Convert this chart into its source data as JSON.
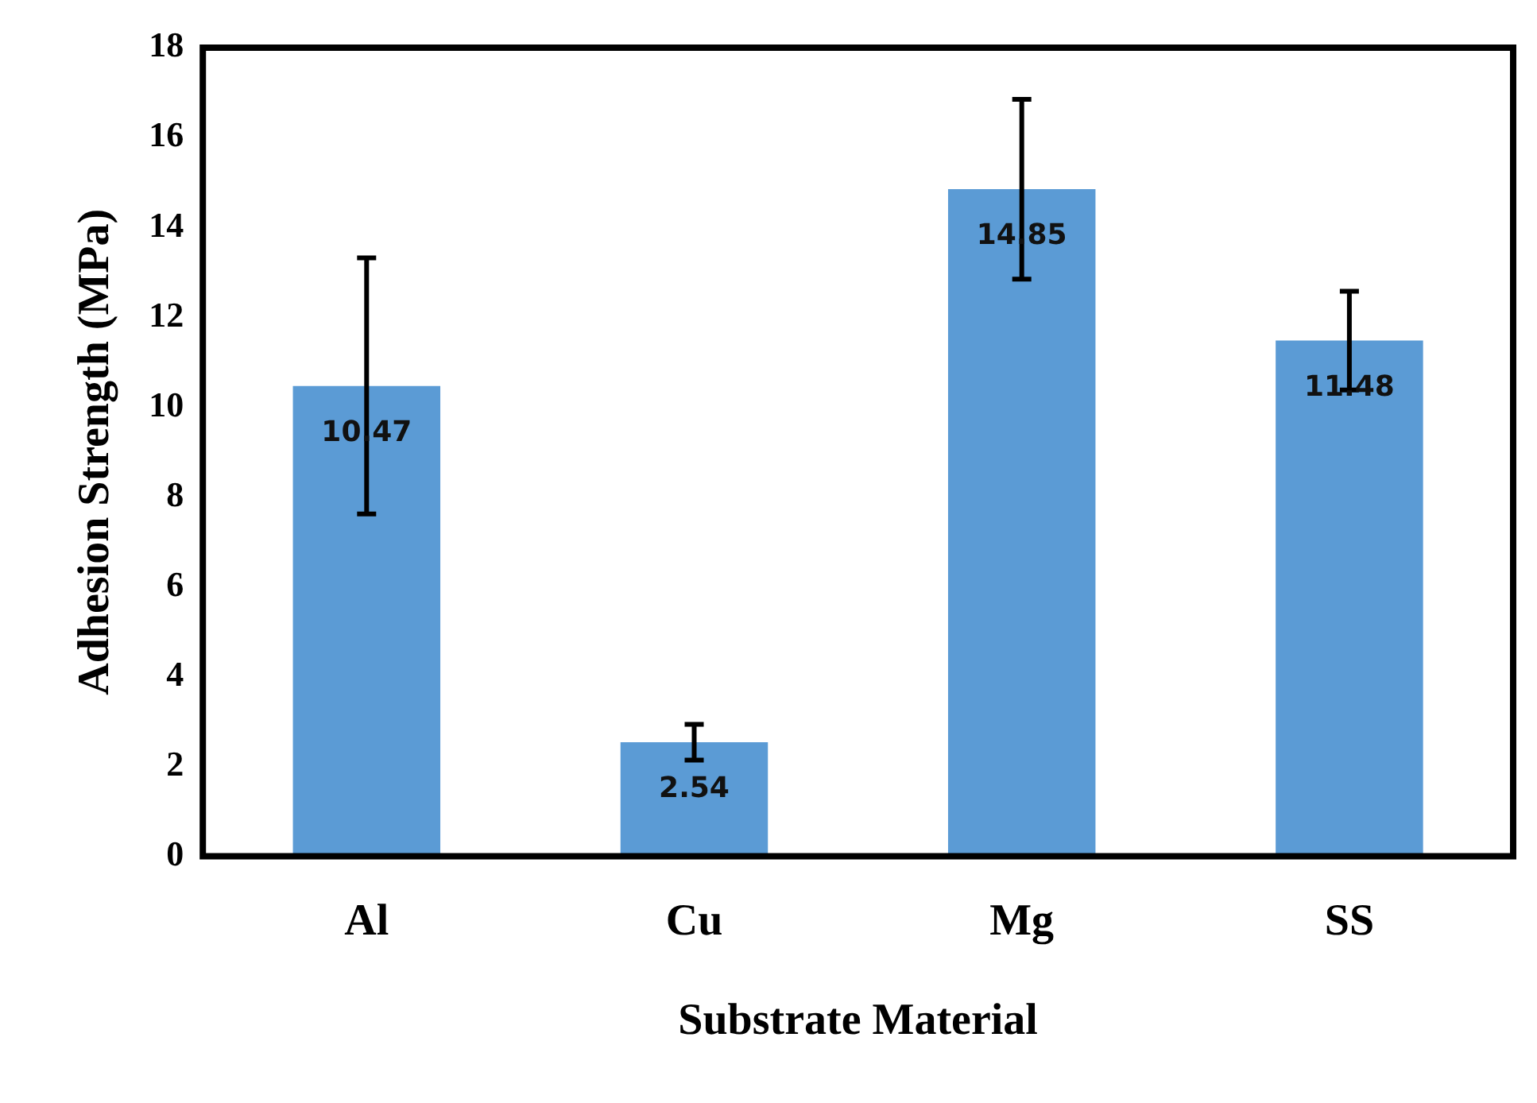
{
  "chart_data": {
    "type": "bar",
    "xlabel": "Substrate Material",
    "ylabel": "Adhesion Strength (MPa)",
    "categories": [
      "Al",
      "Cu",
      "Mg",
      "SS"
    ],
    "values": [
      10.47,
      2.54,
      14.85,
      11.48
    ],
    "errors": [
      2.85,
      0.4,
      2.0,
      1.1
    ],
    "color": "#5b9bd5",
    "ylim": [
      0,
      18
    ],
    "yticks": [
      0,
      2,
      4,
      6,
      8,
      10,
      12,
      14,
      16,
      18
    ],
    "data_labels": true,
    "grid": false,
    "legend": false
  }
}
